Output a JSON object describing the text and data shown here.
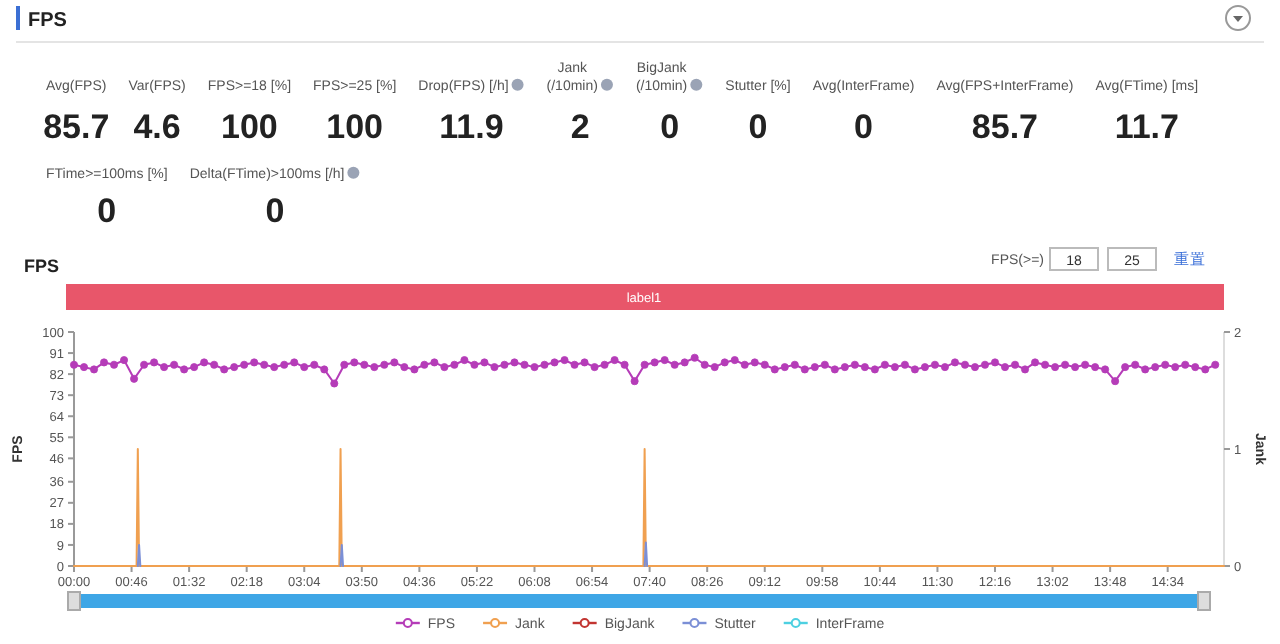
{
  "chart_data": [
    {
      "type": "other",
      "title": "FPS",
      "annotations": [
        "Avg(FPS)",
        "85.7",
        "Var(FPS)",
        "4.6",
        "FPS>=18 [%]",
        "100",
        "FPS>=25 [%]",
        "100",
        "Drop(FPS) [/h]",
        "11.9",
        "Jank\n(/10min)",
        "2",
        "BigJank\n(/10min)",
        "0",
        "Stutter [%]",
        "0",
        "Avg(InterFrame)",
        "0",
        "Avg(FPS+InterFrame)",
        "85.7",
        "Avg(FTime) [ms]",
        "11.7",
        "FTime>=100ms [%]",
        "0",
        "Delta(FTime)>100ms [/h]",
        "0"
      ]
    },
    {
      "type": "line",
      "title": "FPS",
      "ylabel": "FPS",
      "y2label": "Jank",
      "annotations": [
        "label1",
        "FPS(>=)",
        "18",
        "25",
        "重置"
      ],
      "xlim": [
        0,
        919
      ],
      "xticks": [
        {
          "value": 0,
          "label": "00:00"
        },
        {
          "value": 46,
          "label": "00:46"
        },
        {
          "value": 92,
          "label": "01:32"
        },
        {
          "value": 138,
          "label": "02:18"
        },
        {
          "value": 184,
          "label": "03:04"
        },
        {
          "value": 230,
          "label": "03:50"
        },
        {
          "value": 276,
          "label": "04:36"
        },
        {
          "value": 322,
          "label": "05:22"
        },
        {
          "value": 368,
          "label": "06:08"
        },
        {
          "value": 414,
          "label": "06:54"
        },
        {
          "value": 460,
          "label": "07:40"
        },
        {
          "value": 506,
          "label": "08:26"
        },
        {
          "value": 552,
          "label": "09:12"
        },
        {
          "value": 598,
          "label": "09:58"
        },
        {
          "value": 644,
          "label": "10:44"
        },
        {
          "value": 690,
          "label": "11:30"
        },
        {
          "value": 736,
          "label": "12:16"
        },
        {
          "value": 782,
          "label": "13:02"
        },
        {
          "value": 828,
          "label": "13:48"
        },
        {
          "value": 874,
          "label": "14:34"
        }
      ],
      "ylim": [
        0,
        100
      ],
      "yticks": [
        0,
        9,
        18,
        27,
        36,
        46,
        55,
        64,
        73,
        82,
        91,
        100
      ],
      "y2lim": [
        0,
        2
      ],
      "y2ticks": [
        0,
        1,
        2
      ],
      "legend": "bottom",
      "series": [
        {
          "name": "InterFrame",
          "color": "#4dd0e1",
          "type": "line",
          "marker": "none"
        },
        {
          "name": "Stutter",
          "color": "#7b8fd6",
          "type": "line",
          "marker": "none",
          "x": [
            51,
            52,
            53,
            null,
            213,
            214,
            215,
            null,
            456,
            457,
            458
          ],
          "values": [
            0,
            9,
            0,
            null,
            0,
            9,
            0,
            null,
            0,
            10,
            0
          ]
        },
        {
          "name": "BigJank",
          "color": "#c23531",
          "type": "line",
          "marker": "none",
          "axis": "y2"
        },
        {
          "name": "Jank",
          "color": "#f0a050",
          "type": "line",
          "marker": "none",
          "axis": "y2",
          "x": [
            0,
            50,
            51,
            52,
            212,
            213,
            214,
            455,
            456,
            457,
            919
          ],
          "values": [
            0,
            0,
            1,
            0,
            0,
            1,
            0,
            0,
            1,
            0,
            0
          ]
        },
        {
          "name": "FPS",
          "color": "#b53cb8",
          "type": "line",
          "marker": "circle",
          "x": [
            0,
            8,
            16,
            24,
            32,
            40,
            48,
            56,
            64,
            72,
            80,
            88,
            96,
            104,
            112,
            120,
            128,
            136,
            144,
            152,
            160,
            168,
            176,
            184,
            192,
            200,
            208,
            216,
            224,
            232,
            240,
            248,
            256,
            264,
            272,
            280,
            288,
            296,
            304,
            312,
            320,
            328,
            336,
            344,
            352,
            360,
            368,
            376,
            384,
            392,
            400,
            408,
            416,
            424,
            432,
            440,
            448,
            456,
            464,
            472,
            480,
            488,
            496,
            504,
            512,
            520,
            528,
            536,
            544,
            552,
            560,
            568,
            576,
            584,
            592,
            600,
            608,
            616,
            624,
            632,
            640,
            648,
            656,
            664,
            672,
            680,
            688,
            696,
            704,
            712,
            720,
            728,
            736,
            744,
            752,
            760,
            768,
            776,
            784,
            792,
            800,
            808,
            816,
            824,
            832,
            840,
            848,
            856,
            864,
            872,
            880,
            888,
            896,
            904,
            912
          ],
          "values": [
            86,
            85,
            84,
            87,
            86,
            88,
            80,
            86,
            87,
            85,
            86,
            84,
            85,
            87,
            86,
            84,
            85,
            86,
            87,
            86,
            85,
            86,
            87,
            85,
            86,
            84,
            78,
            86,
            87,
            86,
            85,
            86,
            87,
            85,
            84,
            86,
            87,
            85,
            86,
            88,
            86,
            87,
            85,
            86,
            87,
            86,
            85,
            86,
            87,
            88,
            86,
            87,
            85,
            86,
            88,
            86,
            79,
            86,
            87,
            88,
            86,
            87,
            89,
            86,
            85,
            87,
            88,
            86,
            87,
            86,
            84,
            85,
            86,
            84,
            85,
            86,
            84,
            85,
            86,
            85,
            84,
            86,
            85,
            86,
            84,
            85,
            86,
            85,
            87,
            86,
            85,
            86,
            87,
            85,
            86,
            84,
            87,
            86,
            85,
            86,
            85,
            86,
            85,
            84,
            79,
            85,
            86,
            84,
            85,
            86,
            85,
            86,
            85,
            84,
            86
          ]
        }
      ]
    }
  ]
}
